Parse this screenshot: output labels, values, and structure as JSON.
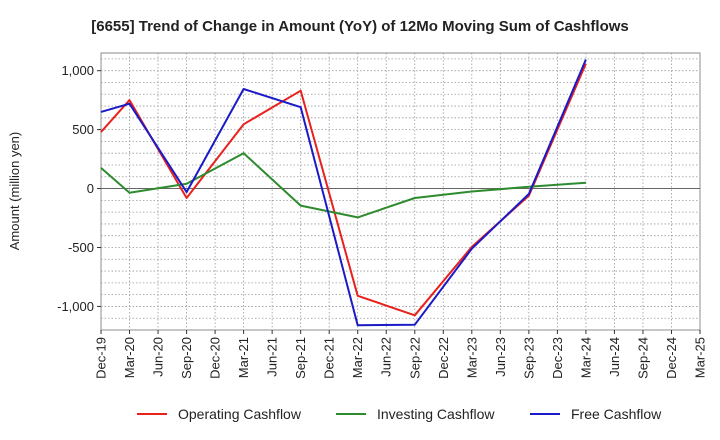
{
  "chart_data": {
    "type": "line",
    "title": "[6655]  Trend of Change in Amount (YoY) of 12Mo Moving Sum of Cashflows",
    "xlabel": "",
    "ylabel": "Amount (million yen)",
    "ylim": [
      -1200,
      1150
    ],
    "yticks": [
      1000,
      500,
      0,
      -500,
      -1000
    ],
    "ytick_labels": [
      "1,000",
      "500",
      "0",
      "-500",
      "-1,000"
    ],
    "categories": [
      "Dec-19",
      "Mar-20",
      "Jun-20",
      "Sep-20",
      "Dec-20",
      "Mar-21",
      "Jun-21",
      "Sep-21",
      "Dec-21",
      "Mar-22",
      "Jun-22",
      "Sep-22",
      "Dec-22",
      "Mar-23",
      "Jun-23",
      "Sep-23",
      "Dec-23",
      "Mar-24",
      "Jun-24",
      "Sep-24",
      "Dec-24",
      "Mar-25"
    ],
    "series": [
      {
        "name": "Operating Cashflow",
        "color": "#e8211d",
        "values": [
          480,
          750,
          null,
          -80,
          null,
          545,
          null,
          830,
          null,
          -910,
          null,
          -1075,
          null,
          -495,
          null,
          -60,
          null,
          1060,
          null,
          null,
          null,
          null
        ]
      },
      {
        "name": "Investing Cashflow",
        "color": "#2e8b2e",
        "values": [
          175,
          -35,
          null,
          40,
          null,
          300,
          null,
          -145,
          null,
          -245,
          null,
          -80,
          null,
          -25,
          null,
          15,
          null,
          50,
          null,
          null,
          null,
          null
        ]
      },
      {
        "name": "Free Cashflow",
        "color": "#1a1ac8",
        "values": [
          650,
          720,
          null,
          -30,
          null,
          845,
          null,
          690,
          null,
          -1160,
          null,
          -1155,
          null,
          -510,
          null,
          -45,
          null,
          1095,
          null,
          null,
          null,
          null
        ]
      }
    ],
    "legend_position": "bottom",
    "grid": true
  }
}
